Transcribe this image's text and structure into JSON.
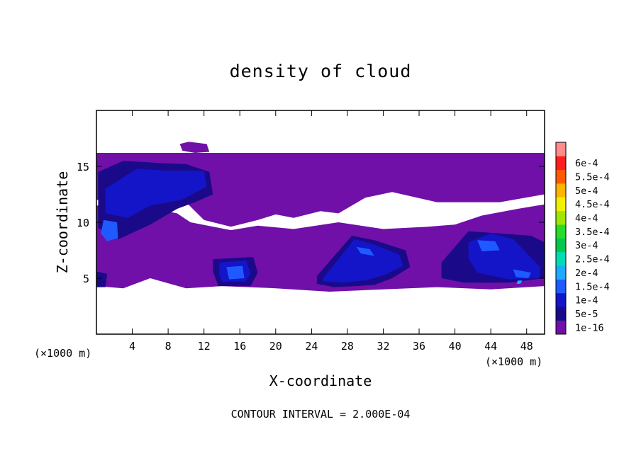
{
  "chart_data": {
    "type": "heatmap",
    "title": "density of cloud",
    "xlabel": "X-coordinate",
    "ylabel": "Z-coordinate",
    "x_unit": "(×1000 m)",
    "footer": "CONTOUR INTERVAL = 2.000E-04",
    "xlim": [
      0,
      50
    ],
    "ylim": [
      0,
      20
    ],
    "x_ticks": [
      4,
      8,
      12,
      16,
      20,
      24,
      28,
      32,
      36,
      40,
      44,
      48
    ],
    "y_ticks": [
      5,
      10,
      15
    ],
    "colorbar": {
      "labels": [
        "1e-16",
        "5e-5",
        "1e-4",
        "1.5e-4",
        "2e-4",
        "2.5e-4",
        "3e-4",
        "3.5e-4",
        "4e-4",
        "4.5e-4",
        "5e-4",
        "5.5e-4",
        "6e-4"
      ],
      "colors": [
        "#7010a8",
        "#1a0a8a",
        "#1414c8",
        "#1e5aff",
        "#1eaaff",
        "#00dcb4",
        "#00c850",
        "#28dc28",
        "#a0e600",
        "#f0f000",
        "#ffb400",
        "#ff5a00",
        "#ff1e1e",
        "#ff8c8c"
      ]
    },
    "regions": [
      {
        "level": 0,
        "x": [
          0,
          31.5,
          50,
          50,
          45,
          38,
          33,
          30,
          27,
          25,
          22,
          20,
          18,
          15,
          12,
          10,
          6,
          3,
          0
        ],
        "y": [
          16.2,
          16.2,
          16.2,
          12.5,
          11.8,
          11.8,
          12.7,
          12.2,
          10.8,
          11.0,
          10.4,
          10.7,
          10.2,
          9.6,
          10.2,
          11.8,
          11.6,
          12.0,
          12.0
        ]
      },
      {
        "level": 0,
        "x": [
          0,
          6,
          9,
          10.5,
          15,
          18,
          22,
          27,
          32,
          37,
          40,
          43,
          47,
          50,
          50,
          44,
          38,
          32,
          26,
          20,
          14,
          10,
          6,
          3,
          0
        ],
        "y": [
          11.5,
          11.3,
          10.8,
          10.0,
          9.3,
          9.7,
          9.4,
          10.0,
          9.4,
          9.6,
          9.8,
          10.6,
          11.2,
          11.6,
          4.3,
          4.0,
          4.2,
          4.0,
          3.8,
          4.1,
          4.3,
          4.1,
          5.0,
          4.1,
          4.3
        ]
      },
      {
        "level": 0,
        "x": [
          9.3,
          10.3,
          12.3,
          12.6,
          11.0,
          9.6
        ],
        "y": [
          17.0,
          17.2,
          17.0,
          16.3,
          16.2,
          16.4
        ]
      },
      {
        "level": 1,
        "x": [
          0.2,
          3,
          7,
          10,
          12.6,
          13,
          11,
          9,
          6,
          2.5,
          0.2
        ],
        "y": [
          14.5,
          15.5,
          15.3,
          15.2,
          14.5,
          12.5,
          11.8,
          11.2,
          9.8,
          8.5,
          9.5
        ]
      },
      {
        "level": 1,
        "x": [
          13,
          17.5,
          18,
          17.2,
          13.6,
          13
        ],
        "y": [
          6.7,
          6.9,
          5.5,
          4.3,
          4.3,
          5.6
        ]
      },
      {
        "level": 1,
        "x": [
          24.6,
          28.5,
          31,
          34.5,
          35,
          33,
          31,
          29,
          26.5,
          24.6
        ],
        "y": [
          5.2,
          8.8,
          8.4,
          7.5,
          6.0,
          5.0,
          4.4,
          4.3,
          4.2,
          4.5
        ]
      },
      {
        "level": 1,
        "x": [
          38.5,
          41.5,
          45,
          48.5,
          50,
          50,
          46,
          41,
          38.5
        ],
        "y": [
          6.4,
          9.2,
          9.0,
          8.8,
          8.2,
          5.0,
          4.6,
          4.6,
          5.0
        ]
      },
      {
        "level": 1,
        "x": [
          0,
          1.2,
          1.0,
          0
        ],
        "y": [
          5.6,
          5.4,
          4.2,
          4.2
        ]
      },
      {
        "level": 2,
        "x": [
          1.0,
          4.5,
          8,
          12,
          12.3,
          9.5,
          6,
          3.5,
          1.0
        ],
        "y": [
          13.0,
          14.8,
          14.6,
          14.6,
          13.2,
          12.0,
          11.5,
          10.4,
          10.8
        ]
      },
      {
        "level": 2,
        "x": [
          13.7,
          16.7,
          17.2,
          16.6,
          14.0,
          13.7
        ],
        "y": [
          6.4,
          6.6,
          5.4,
          4.7,
          4.7,
          5.3
        ]
      },
      {
        "level": 2,
        "x": [
          25.3,
          28.8,
          31.0,
          33.8,
          34.2,
          32.2,
          30.0,
          27.5,
          25.3
        ],
        "y": [
          5.0,
          8.5,
          8.0,
          7.1,
          6.1,
          5.3,
          4.8,
          4.6,
          4.7
        ]
      },
      {
        "level": 2,
        "x": [
          41.5,
          44.0,
          46.5,
          49.5,
          49.5,
          46.0,
          42.5,
          41.5
        ],
        "y": [
          8.2,
          9.0,
          8.5,
          6.0,
          5.0,
          4.9,
          5.5,
          6.8
        ]
      },
      {
        "level": 3,
        "x": [
          0.8,
          2.3,
          2.4,
          1.2,
          0.5
        ],
        "y": [
          10.2,
          10.0,
          8.6,
          8.3,
          9.0
        ]
      },
      {
        "level": 3,
        "x": [
          14.5,
          16.3,
          16.5,
          14.8
        ],
        "y": [
          6.0,
          6.1,
          5.0,
          4.9
        ]
      },
      {
        "level": 3,
        "x": [
          29.0,
          30.5,
          31.0,
          29.5
        ],
        "y": [
          7.8,
          7.6,
          7.0,
          7.2
        ]
      },
      {
        "level": 3,
        "x": [
          42.5,
          44.5,
          45.0,
          43.0
        ],
        "y": [
          8.4,
          8.3,
          7.5,
          7.4
        ]
      },
      {
        "level": 3,
        "x": [
          46.5,
          48.5,
          48.2,
          46.8
        ],
        "y": [
          5.8,
          5.5,
          5.0,
          5.1
        ]
      },
      {
        "level": 4,
        "x": [
          47.0,
          47.5,
          47.3,
          46.9
        ],
        "y": [
          4.8,
          4.8,
          4.5,
          4.5
        ]
      }
    ]
  }
}
